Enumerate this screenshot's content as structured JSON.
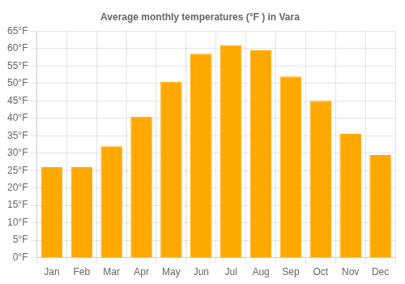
{
  "chart_data": {
    "type": "bar",
    "title": "Average monthly temperatures (°F ) in Vara",
    "categories": [
      "Jan",
      "Feb",
      "Mar",
      "Apr",
      "May",
      "Jun",
      "Jul",
      "Aug",
      "Sep",
      "Oct",
      "Nov",
      "Dec"
    ],
    "values": [
      26,
      26,
      32,
      40.5,
      50.5,
      58.5,
      61,
      59.5,
      52,
      45,
      35.5,
      29.5
    ],
    "color": "#FFA800",
    "ylim": [
      0,
      65
    ],
    "yticks": [
      {
        "value": 0,
        "label": "0°F"
      },
      {
        "value": 5,
        "label": "5°F"
      },
      {
        "value": 10,
        "label": "10°F"
      },
      {
        "value": 15,
        "label": "15°F"
      },
      {
        "value": 20,
        "label": "20°F"
      },
      {
        "value": 25,
        "label": "25°F"
      },
      {
        "value": 30,
        "label": "30°F"
      },
      {
        "value": 35,
        "label": "35°F"
      },
      {
        "value": 40,
        "label": "40°F"
      },
      {
        "value": 45,
        "label": "45°F"
      },
      {
        "value": 50,
        "label": "50°F"
      },
      {
        "value": 55,
        "label": "55°F"
      },
      {
        "value": 60,
        "label": "60°F"
      },
      {
        "value": 65,
        "label": "65°F"
      }
    ],
    "grid": true
  }
}
